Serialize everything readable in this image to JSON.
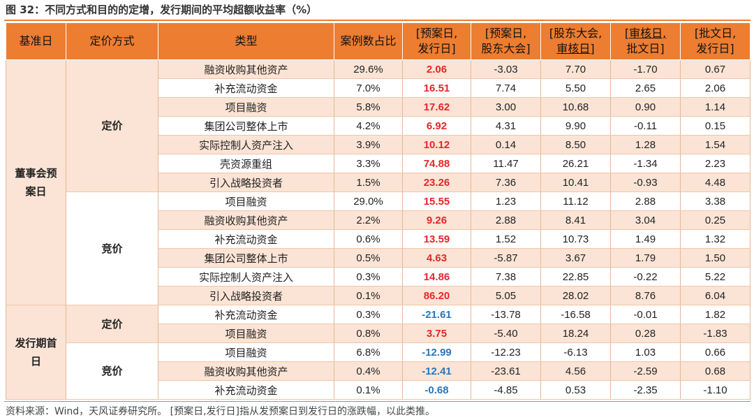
{
  "title": "图 32：不同方式和目的的定增，发行期间的平均超额收益率（%）",
  "source": "资料来源：Wind，天风证券研究所。 [预案日,发行日]指从发预案日到发行日的涨跌幅，以此类推。",
  "colors": {
    "header_bg": "#ed7d31",
    "band": "#fbe4d5",
    "positive": "#e8252a",
    "negative": "#2e75b6"
  },
  "headers": {
    "base_day": "基准日",
    "pricing": "定价方式",
    "type": "类型",
    "share": "案例数占比",
    "c1_line1": "[预案日,",
    "c1_line2": "发行日]",
    "c2_line1": "[预案日,",
    "c2_line2": "股东大会]",
    "c3_line1": "[股东大会,",
    "c3_line2": "审核日]",
    "c4_line1": "[审核日,",
    "c4_line2": "批文日]",
    "c5_line1": "[批文日,",
    "c5_line2": "发行日]"
  },
  "groups": {
    "board_line1": "董事会预",
    "board_line2": "案日",
    "issue_line1": "发行期首",
    "issue_line2": "日",
    "fixed": "定价",
    "bid": "竞价"
  },
  "rows": [
    {
      "type": "融资收购其他资产",
      "share": "29.6%",
      "c1": "2.06",
      "c2": "-3.03",
      "c3": "7.70",
      "c4": "-1.70",
      "c5": "0.67"
    },
    {
      "type": "补充流动资金",
      "share": "7.0%",
      "c1": "16.51",
      "c2": "7.74",
      "c3": "5.50",
      "c4": "2.65",
      "c5": "2.06"
    },
    {
      "type": "项目融资",
      "share": "5.8%",
      "c1": "17.62",
      "c2": "3.00",
      "c3": "10.68",
      "c4": "0.90",
      "c5": "1.14"
    },
    {
      "type": "集团公司整体上市",
      "share": "4.2%",
      "c1": "6.92",
      "c2": "4.31",
      "c3": "9.90",
      "c4": "-0.11",
      "c5": "0.15"
    },
    {
      "type": "实际控制人资产注入",
      "share": "3.9%",
      "c1": "10.12",
      "c2": "0.14",
      "c3": "8.50",
      "c4": "1.28",
      "c5": "1.54"
    },
    {
      "type": "壳资源重组",
      "share": "3.3%",
      "c1": "74.88",
      "c2": "11.47",
      "c3": "26.21",
      "c4": "-1.34",
      "c5": "2.23"
    },
    {
      "type": "引入战略投资者",
      "share": "1.5%",
      "c1": "23.26",
      "c2": "7.36",
      "c3": "10.41",
      "c4": "-0.93",
      "c5": "4.48"
    },
    {
      "type": "项目融资",
      "share": "29.0%",
      "c1": "15.55",
      "c2": "1.23",
      "c3": "11.12",
      "c4": "2.88",
      "c5": "3.38"
    },
    {
      "type": "融资收购其他资产",
      "share": "2.2%",
      "c1": "9.26",
      "c2": "2.88",
      "c3": "8.41",
      "c4": "3.04",
      "c5": "0.25"
    },
    {
      "type": "补充流动资金",
      "share": "0.6%",
      "c1": "13.59",
      "c2": "1.52",
      "c3": "10.73",
      "c4": "1.49",
      "c5": "1.32"
    },
    {
      "type": "集团公司整体上市",
      "share": "0.5%",
      "c1": "4.63",
      "c2": "-5.87",
      "c3": "3.67",
      "c4": "1.79",
      "c5": "1.50"
    },
    {
      "type": "实际控制人资产注入",
      "share": "0.3%",
      "c1": "14.86",
      "c2": "7.38",
      "c3": "22.85",
      "c4": "-0.22",
      "c5": "5.22"
    },
    {
      "type": "引入战略投资者",
      "share": "0.1%",
      "c1": "86.20",
      "c2": "5.05",
      "c3": "28.02",
      "c4": "8.76",
      "c5": "6.04"
    },
    {
      "type": "补充流动资金",
      "share": "0.3%",
      "c1": "-21.61",
      "c2": "-13.78",
      "c3": "-16.58",
      "c4": "-0.01",
      "c5": "1.82"
    },
    {
      "type": "项目融资",
      "share": "0.8%",
      "c1": "3.75",
      "c2": "-5.40",
      "c3": "18.24",
      "c4": "0.28",
      "c5": "-1.83"
    },
    {
      "type": "项目融资",
      "share": "6.8%",
      "c1": "-12.99",
      "c2": "-12.23",
      "c3": "-6.13",
      "c4": "1.03",
      "c5": "0.66"
    },
    {
      "type": "融资收购其他资产",
      "share": "0.4%",
      "c1": "-12.41",
      "c2": "-23.61",
      "c3": "4.56",
      "c4": "-2.59",
      "c5": "0.68"
    },
    {
      "type": "补充流动资金",
      "share": "0.1%",
      "c1": "-0.68",
      "c2": "-4.85",
      "c3": "0.53",
      "c4": "-2.35",
      "c5": "-1.10"
    }
  ]
}
